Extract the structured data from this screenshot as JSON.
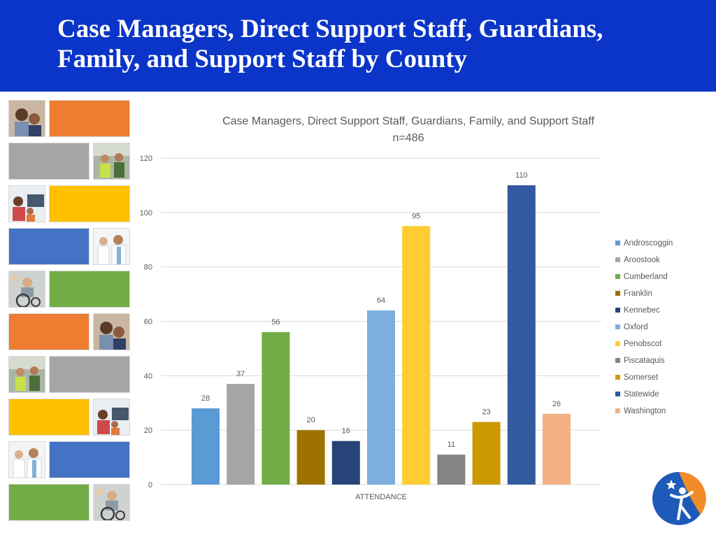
{
  "header": {
    "title_line1": "Case Managers, Direct Support Staff, Guardians,",
    "title_line2": "Family, and Support Staff by County"
  },
  "tiles": {
    "colors": [
      "#ed7d31",
      "#a5a5a5",
      "#ffc000",
      "#4472c4",
      "#70ad47"
    ],
    "photo_icons": [
      "family-photo-icon",
      "workers-photo-icon",
      "computer-kids-photo-icon",
      "doctors-photo-icon",
      "wheelchair-photo-icon"
    ]
  },
  "chart_data": {
    "type": "bar",
    "title": "Case Managers, Direct Support Staff, Guardians, Family, and Support Staff",
    "subtitle": "n=486",
    "xlabel": "ATTENDANCE",
    "ylabel": "",
    "ylim": [
      0,
      120
    ],
    "yticks": [
      0,
      20,
      40,
      60,
      80,
      100,
      120
    ],
    "grid": true,
    "legend_position": "right",
    "categories": [
      "ATTENDANCE"
    ],
    "series": [
      {
        "name": "Androscoggin",
        "values": [
          28
        ],
        "color": "#5b9bd5"
      },
      {
        "name": "Aroostook",
        "values": [
          37
        ],
        "color": "#a5a5a5"
      },
      {
        "name": "Cumberland",
        "values": [
          56
        ],
        "color": "#70ad47"
      },
      {
        "name": "Franklin",
        "values": [
          20
        ],
        "color": "#9e7200"
      },
      {
        "name": "Kennebec",
        "values": [
          16
        ],
        "color": "#264478"
      },
      {
        "name": "Oxford",
        "values": [
          64
        ],
        "color": "#7cafdd"
      },
      {
        "name": "Penobscot",
        "values": [
          95
        ],
        "color": "#ffcd33"
      },
      {
        "name": "Piscataquis",
        "values": [
          11
        ],
        "color": "#848484"
      },
      {
        "name": "Somerset",
        "values": [
          23
        ],
        "color": "#cc9a00"
      },
      {
        "name": "Statewide",
        "values": [
          110
        ],
        "color": "#335aa1"
      },
      {
        "name": "Washington",
        "values": [
          26
        ],
        "color": "#f1b183"
      }
    ]
  },
  "logo": {
    "icon": "person-star-logo-icon",
    "colors": [
      "#1e5bb8",
      "#f28c28"
    ]
  }
}
